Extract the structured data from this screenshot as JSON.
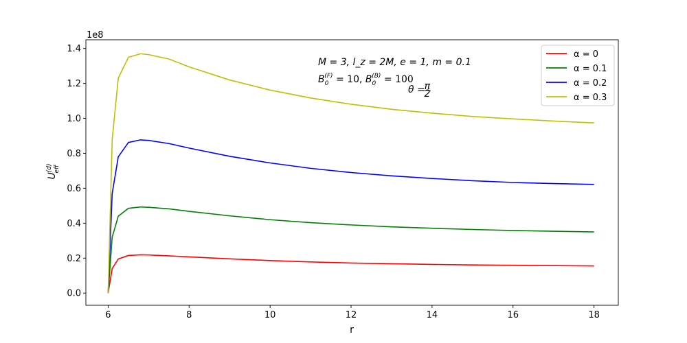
{
  "chart_data": {
    "type": "line",
    "xlabel": "r",
    "ylabel": {
      "base": "U",
      "sup": "(d)",
      "sub": "eff"
    },
    "offset_label": "1e8",
    "xlim": [
      5.45,
      18.6
    ],
    "ylim": [
      -0.07,
      1.45
    ],
    "x_ticks": [
      6,
      8,
      10,
      12,
      14,
      16,
      18
    ],
    "x_tick_labels": [
      "6",
      "8",
      "10",
      "12",
      "14",
      "16",
      "18"
    ],
    "y_ticks": [
      0.0,
      0.2,
      0.4,
      0.6,
      0.8,
      1.0,
      1.2,
      1.4
    ],
    "y_tick_labels": [
      "0.0",
      "0.2",
      "0.4",
      "0.6",
      "0.8",
      "1.0",
      "1.2",
      "1.4"
    ],
    "grid": false,
    "legend_position": "upper-right",
    "annotations": {
      "line1": "M = 3,  l_z = 2M,  e = 1,  m = 0.1",
      "line2": {
        "b1": "B",
        "b1_sub": "0",
        "b1_sup": "(F)",
        "b1_val": " = 10, ",
        "b2": "B",
        "b2_sub": "0",
        "b2_sup": "(B)",
        "b2_val": " = 100"
      },
      "line3": {
        "lhs": "θ = ",
        "num": "π",
        "den": "2"
      }
    },
    "x": [
      6.0,
      6.1,
      6.25,
      6.5,
      6.8,
      7.0,
      7.5,
      8.0,
      9.0,
      10.0,
      11.0,
      12.0,
      13.0,
      14.0,
      15.0,
      16.0,
      17.0,
      18.0
    ],
    "series": [
      {
        "name": "α = 0",
        "color": "#ff0000",
        "values": [
          0.0,
          0.14,
          0.195,
          0.215,
          0.219,
          0.218,
          0.213,
          0.207,
          0.196,
          0.186,
          0.178,
          0.172,
          0.168,
          0.164,
          0.161,
          0.159,
          0.157,
          0.155
        ]
      },
      {
        "name": "α = 0.1",
        "color": "#008000",
        "values": [
          0.0,
          0.32,
          0.44,
          0.485,
          0.493,
          0.491,
          0.482,
          0.468,
          0.442,
          0.42,
          0.403,
          0.39,
          0.379,
          0.371,
          0.364,
          0.358,
          0.354,
          0.35
        ]
      },
      {
        "name": "α = 0.2",
        "color": "#0000ff",
        "values": [
          0.0,
          0.57,
          0.78,
          0.862,
          0.877,
          0.874,
          0.856,
          0.83,
          0.783,
          0.745,
          0.714,
          0.69,
          0.671,
          0.656,
          0.643,
          0.633,
          0.627,
          0.622
        ]
      },
      {
        "name": "α = 0.3",
        "color": "#bfbf00",
        "values": [
          0.0,
          0.88,
          1.23,
          1.35,
          1.37,
          1.365,
          1.34,
          1.295,
          1.22,
          1.162,
          1.117,
          1.081,
          1.052,
          1.03,
          1.011,
          0.997,
          0.985,
          0.974
        ]
      }
    ]
  }
}
